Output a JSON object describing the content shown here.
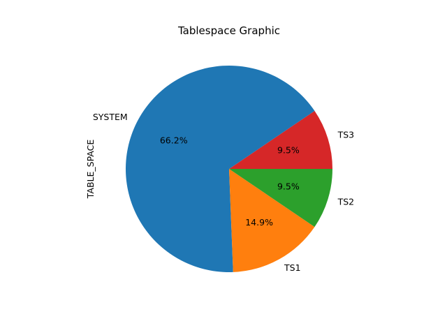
{
  "chart_data": {
    "type": "pie",
    "title": "Tablespace Graphic",
    "ylabel": "TABLE_SPACE",
    "startangle": 0,
    "direction": "counterclockwise",
    "slices": [
      {
        "label": "TS3",
        "percent_label": "9.5%",
        "value": 9.5,
        "color": "#d62728"
      },
      {
        "label": "SYSTEM",
        "percent_label": "66.2%",
        "value": 66.2,
        "color": "#1f77b4"
      },
      {
        "label": "TS1",
        "percent_label": "14.9%",
        "value": 14.9,
        "color": "#ff7f0e"
      },
      {
        "label": "TS2",
        "percent_label": "9.5%",
        "value": 9.5,
        "color": "#2ca02c"
      }
    ]
  }
}
